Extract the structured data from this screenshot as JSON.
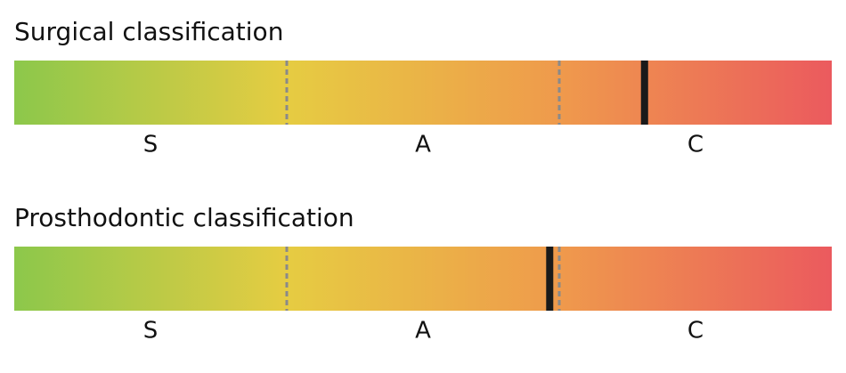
{
  "chart_data": [
    {
      "type": "scale",
      "title": "Surgical classification",
      "categories": [
        "S",
        "A",
        "C"
      ],
      "value": 0.771,
      "xlim": [
        0,
        1
      ],
      "colors": [
        "#8cc84b",
        "#e6cc42",
        "#ef9a4c",
        "#eb5a5e"
      ]
    },
    {
      "type": "scale",
      "title": "Prosthodontic classification",
      "categories": [
        "S",
        "A",
        "C"
      ],
      "value": 0.655,
      "xlim": [
        0,
        1
      ],
      "colors": [
        "#8cc84b",
        "#e6cc42",
        "#ef9a4c",
        "#eb5a5e"
      ]
    }
  ]
}
